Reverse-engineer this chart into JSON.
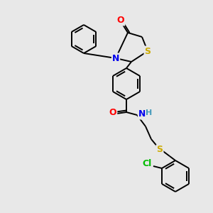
{
  "background_color": "#e8e8e8",
  "bond_color": "#000000",
  "atom_colors": {
    "O": "#ff0000",
    "N": "#0000ee",
    "S": "#ccaa00",
    "Cl": "#00bb00",
    "C": "#000000",
    "H": "#4499bb"
  },
  "figsize": [
    3.0,
    3.0
  ],
  "dpi": 100
}
